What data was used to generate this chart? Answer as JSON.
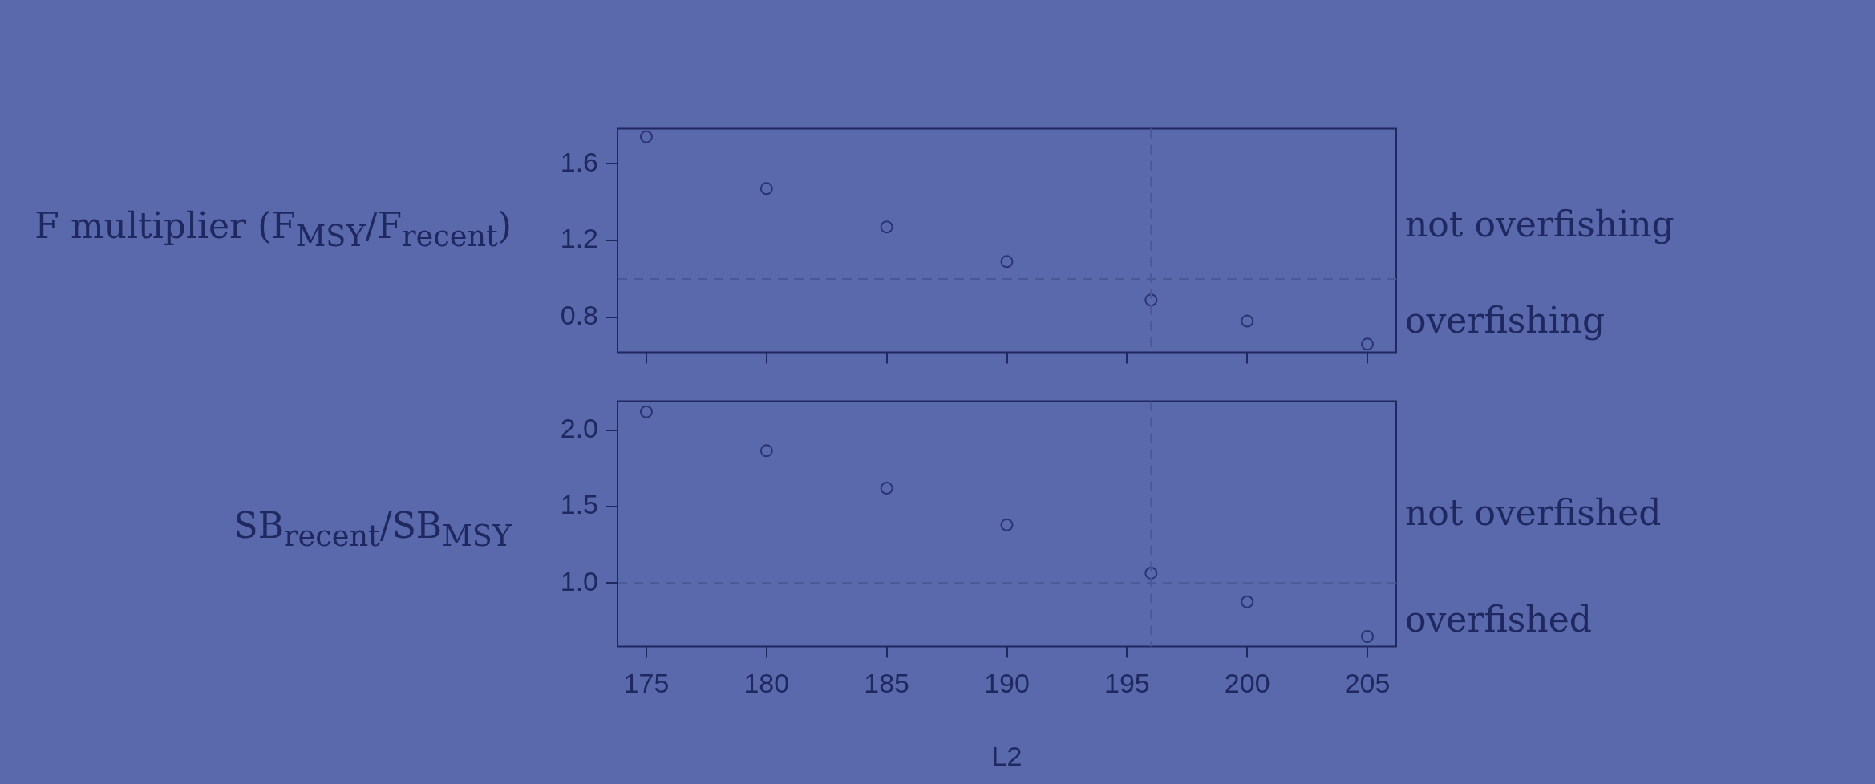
{
  "chart_data": [
    {
      "type": "scatter",
      "ylabel": "F multiplier (F$_{MSY}$/F$_{recent}$)",
      "x": [
        175,
        180,
        185,
        190,
        196,
        200,
        205
      ],
      "series": [
        {
          "color": "#2a3474",
          "values": [
            1.74,
            1.47,
            1.27,
            1.09,
            0.89,
            0.78,
            0.66
          ]
        }
      ],
      "xlim": [
        173.8,
        206.2
      ],
      "xticks": [
        175,
        180,
        185,
        190,
        195,
        200,
        205
      ],
      "ylim": [
        0.617,
        1.783
      ],
      "yticks": [
        0.8,
        1.2,
        1.6
      ],
      "tick_labels": "y",
      "marker": "circle",
      "grid": false,
      "legend": false,
      "ref_lines": [
        {
          "axis": "y",
          "value": 1.0,
          "line_style": "dashed",
          "color": "#4a5898"
        },
        {
          "axis": "x",
          "value": 196,
          "line_style": "dashed",
          "color": "#4a5898"
        }
      ],
      "annotations": [
        "not overfishing",
        "overfishing"
      ]
    },
    {
      "type": "scatter",
      "ylabel": "SB$_{recent}$/SB$_{MSY}$",
      "xlabel": "L2",
      "x": [
        175,
        180,
        185,
        190,
        196,
        200,
        205
      ],
      "series": [
        {
          "color": "#2a3474",
          "values": [
            2.12,
            1.865,
            1.62,
            1.38,
            1.065,
            0.877,
            0.65
          ]
        }
      ],
      "xlim": [
        173.8,
        206.2
      ],
      "xticks": [
        175,
        180,
        185,
        190,
        195,
        200,
        205
      ],
      "ylim": [
        0.585,
        2.19
      ],
      "yticks": [
        {
          "value": 1,
          "label": "1.0"
        },
        1.5,
        {
          "value": 2,
          "label": "2.0"
        }
      ],
      "marker": "circle",
      "grid": false,
      "legend": false,
      "ref_lines": [
        {
          "axis": "y",
          "value": 1.0,
          "line_style": "dashed",
          "color": "#4a5898"
        },
        {
          "axis": "x",
          "value": 196,
          "line_style": "dashed",
          "color": "#4a5898"
        }
      ],
      "annotations": [
        "not overfished",
        "overfished"
      ]
    }
  ]
}
